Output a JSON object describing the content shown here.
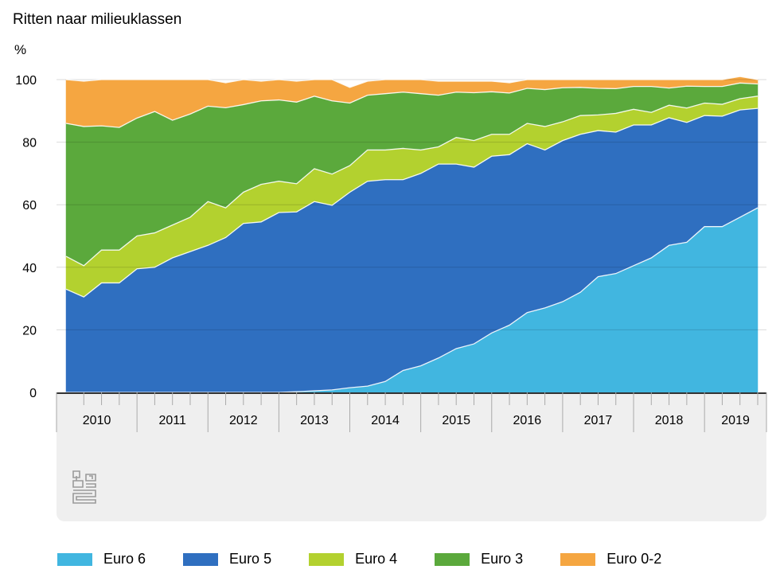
{
  "chart_data": {
    "type": "area",
    "stacked": true,
    "title": "Ritten naar milieuklassen",
    "ylabel": "%",
    "ylim": [
      0,
      100
    ],
    "yticks": [
      0,
      20,
      40,
      60,
      80,
      100
    ],
    "grid": true,
    "legend_position": "bottom",
    "x_start_year": 2010,
    "x_quarters_per_year": 4,
    "year_labels": [
      "2010",
      "2011",
      "2012",
      "2013",
      "2014",
      "2015",
      "2016",
      "2017",
      "2018",
      "2019"
    ],
    "series": [
      {
        "name": "Euro 6",
        "color": "#41b6e0",
        "values": [
          0,
          0,
          0,
          0,
          0,
          0,
          0,
          0,
          0,
          0,
          0,
          0,
          0,
          0.2,
          0.5,
          0.8,
          1.5,
          2,
          3.5,
          7,
          8.5,
          11,
          14,
          15.5,
          19,
          21.5,
          25.5,
          27,
          29,
          32,
          37,
          38,
          40.5,
          43,
          47,
          48,
          53,
          53,
          56,
          59
        ]
      },
      {
        "name": "Euro 5",
        "color": "#2f6fc0",
        "values": [
          33,
          30.5,
          35,
          35,
          39.5,
          40,
          43,
          45,
          47,
          49.5,
          54,
          54.5,
          57.5,
          57.5,
          60.5,
          59,
          62.5,
          65.5,
          64.5,
          61,
          61.5,
          62,
          59,
          56.5,
          56.5,
          54.5,
          54,
          50.5,
          51.5,
          50.5,
          46.7,
          45.2,
          45,
          42.5,
          40.8,
          38.3,
          35.5,
          35.3,
          34.3,
          31.8
        ]
      },
      {
        "name": "Euro 4",
        "color": "#b3d12f",
        "values": [
          10.5,
          10,
          10.5,
          10.5,
          10.5,
          11,
          10.5,
          11,
          14,
          9.5,
          10,
          12,
          10,
          9,
          10.5,
          10,
          8.5,
          10,
          9.5,
          10,
          7.5,
          5.5,
          8.5,
          8.5,
          7,
          6.5,
          6.5,
          7.5,
          6,
          6,
          5,
          6,
          5,
          4,
          4,
          4.6,
          4,
          3.8,
          3.6,
          3.9
        ]
      },
      {
        "name": "Euro 3",
        "color": "#5ba93c",
        "values": [
          42.5,
          44.5,
          39.7,
          39.2,
          37.7,
          38.8,
          33.5,
          33,
          30.5,
          32,
          28,
          26.7,
          26,
          26.1,
          23.2,
          23.4,
          20,
          17.5,
          18,
          18,
          18,
          16.5,
          14.5,
          15.3,
          13.6,
          13.2,
          11.2,
          11.8,
          10.9,
          9,
          8.5,
          7.9,
          7.3,
          8.3,
          5.5,
          7,
          5.3,
          5.7,
          5,
          3.9
        ]
      },
      {
        "name": "Euro 0-2",
        "color": "#f5a641",
        "values": [
          14,
          14.5,
          14.8,
          15.3,
          12.3,
          10.2,
          13,
          11,
          8.5,
          8,
          8,
          6.3,
          6.5,
          6.7,
          5.3,
          6.8,
          5,
          4.5,
          4.5,
          4,
          4.5,
          4.5,
          3.5,
          3.7,
          3.4,
          3.3,
          2.8,
          3.2,
          2.6,
          2.5,
          2.8,
          2.9,
          2.2,
          2.2,
          2.7,
          2.1,
          2.2,
          2.2,
          2.1,
          1.4
        ]
      }
    ]
  },
  "icons": {
    "logo": "cbs-logo-icon"
  }
}
